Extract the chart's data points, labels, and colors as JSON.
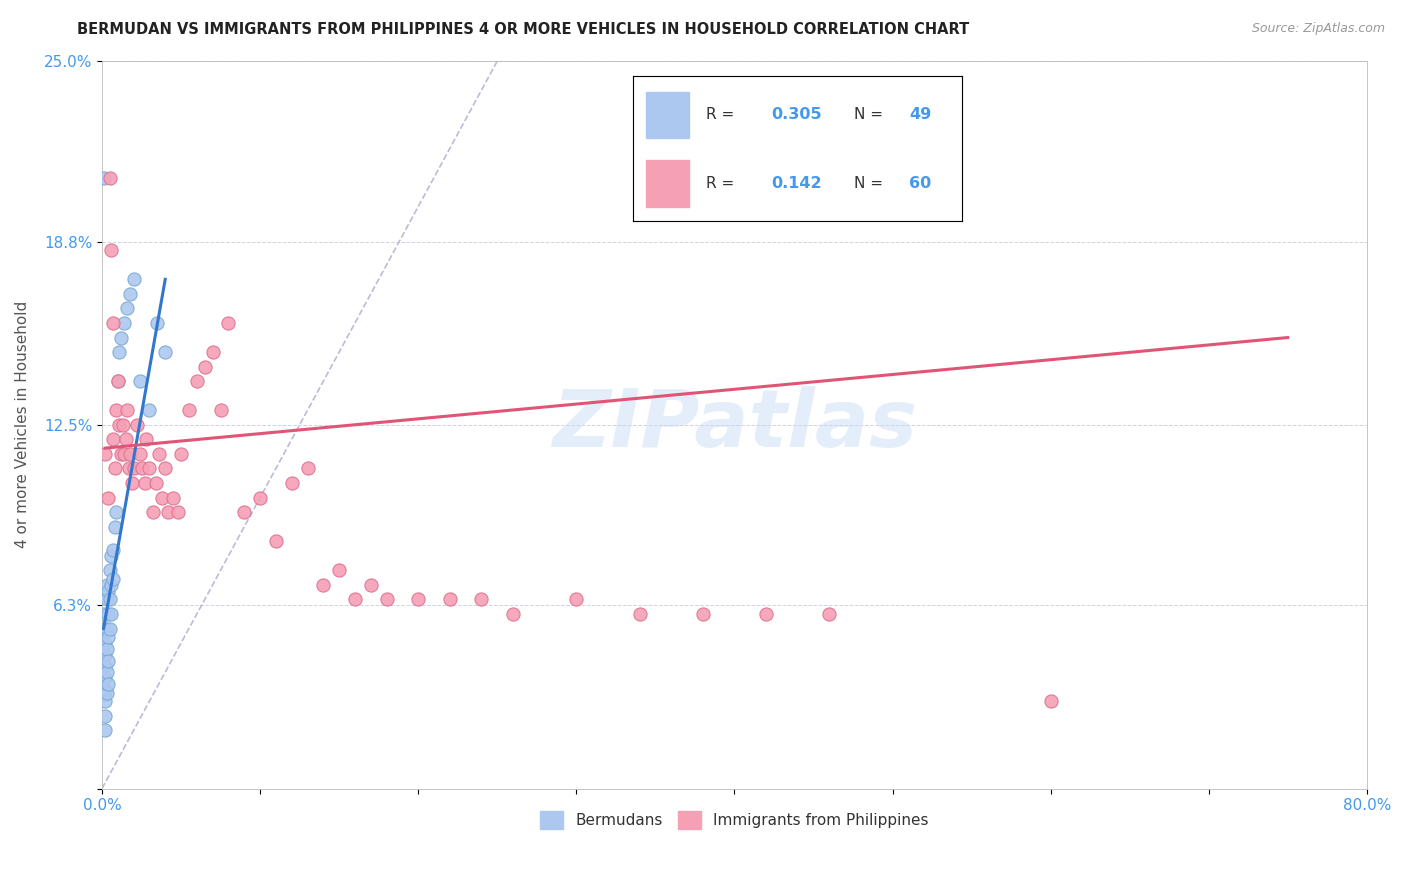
{
  "title": "BERMUDAN VS IMMIGRANTS FROM PHILIPPINES 4 OR MORE VEHICLES IN HOUSEHOLD CORRELATION CHART",
  "source": "Source: ZipAtlas.com",
  "ylabel": "4 or more Vehicles in Household",
  "xlabel": "",
  "xlim": [
    0,
    0.8
  ],
  "ylim": [
    0,
    0.25
  ],
  "R_blue": 0.305,
  "N_blue": 49,
  "R_pink": 0.142,
  "N_pink": 60,
  "legend_label_blue": "Bermudans",
  "legend_label_pink": "Immigrants from Philippines",
  "watermark": "ZIPatlas",
  "blue_color": "#adc8f0",
  "blue_edge": "#7aaad0",
  "pink_color": "#f5a0b5",
  "pink_edge": "#e07090",
  "blue_line_color": "#3377cc",
  "pink_line_color": "#e05575",
  "ref_line_color": "#aaaacc",
  "title_color": "#222222",
  "axis_label_color": "#555555",
  "tick_color": "#4499ee",
  "blue_x": [
    0.001,
    0.001,
    0.001,
    0.001,
    0.001,
    0.001,
    0.001,
    0.002,
    0.002,
    0.002,
    0.002,
    0.002,
    0.002,
    0.002,
    0.002,
    0.002,
    0.003,
    0.003,
    0.003,
    0.003,
    0.003,
    0.003,
    0.004,
    0.004,
    0.004,
    0.004,
    0.004,
    0.005,
    0.005,
    0.005,
    0.006,
    0.006,
    0.006,
    0.007,
    0.007,
    0.008,
    0.009,
    0.01,
    0.011,
    0.012,
    0.014,
    0.016,
    0.018,
    0.02,
    0.024,
    0.03,
    0.035,
    0.04,
    0.001
  ],
  "blue_y": [
    0.06,
    0.055,
    0.05,
    0.046,
    0.042,
    0.038,
    0.032,
    0.055,
    0.05,
    0.046,
    0.042,
    0.038,
    0.034,
    0.03,
    0.025,
    0.02,
    0.07,
    0.065,
    0.055,
    0.048,
    0.04,
    0.033,
    0.068,
    0.06,
    0.052,
    0.044,
    0.036,
    0.075,
    0.065,
    0.055,
    0.08,
    0.07,
    0.06,
    0.082,
    0.072,
    0.09,
    0.095,
    0.14,
    0.15,
    0.155,
    0.16,
    0.165,
    0.17,
    0.175,
    0.14,
    0.13,
    0.16,
    0.15,
    0.21
  ],
  "pink_x": [
    0.002,
    0.004,
    0.005,
    0.006,
    0.007,
    0.007,
    0.008,
    0.009,
    0.01,
    0.011,
    0.012,
    0.013,
    0.014,
    0.015,
    0.016,
    0.017,
    0.018,
    0.019,
    0.02,
    0.022,
    0.024,
    0.025,
    0.027,
    0.028,
    0.03,
    0.032,
    0.034,
    0.036,
    0.038,
    0.04,
    0.042,
    0.045,
    0.048,
    0.05,
    0.055,
    0.06,
    0.065,
    0.07,
    0.075,
    0.08,
    0.09,
    0.1,
    0.11,
    0.12,
    0.13,
    0.14,
    0.15,
    0.16,
    0.17,
    0.18,
    0.2,
    0.22,
    0.24,
    0.26,
    0.3,
    0.34,
    0.38,
    0.42,
    0.46,
    0.6
  ],
  "pink_y": [
    0.115,
    0.1,
    0.21,
    0.185,
    0.16,
    0.12,
    0.11,
    0.13,
    0.14,
    0.125,
    0.115,
    0.125,
    0.115,
    0.12,
    0.13,
    0.11,
    0.115,
    0.105,
    0.11,
    0.125,
    0.115,
    0.11,
    0.105,
    0.12,
    0.11,
    0.095,
    0.105,
    0.115,
    0.1,
    0.11,
    0.095,
    0.1,
    0.095,
    0.115,
    0.13,
    0.14,
    0.145,
    0.15,
    0.13,
    0.16,
    0.095,
    0.1,
    0.085,
    0.105,
    0.11,
    0.07,
    0.075,
    0.065,
    0.07,
    0.065,
    0.065,
    0.065,
    0.065,
    0.06,
    0.065,
    0.06,
    0.06,
    0.06,
    0.06,
    0.03
  ],
  "blue_trend_x": [
    0.001,
    0.04
  ],
  "blue_trend_y": [
    0.055,
    0.175
  ],
  "pink_trend_x": [
    0.002,
    0.75
  ],
  "pink_trend_y": [
    0.117,
    0.155
  ]
}
